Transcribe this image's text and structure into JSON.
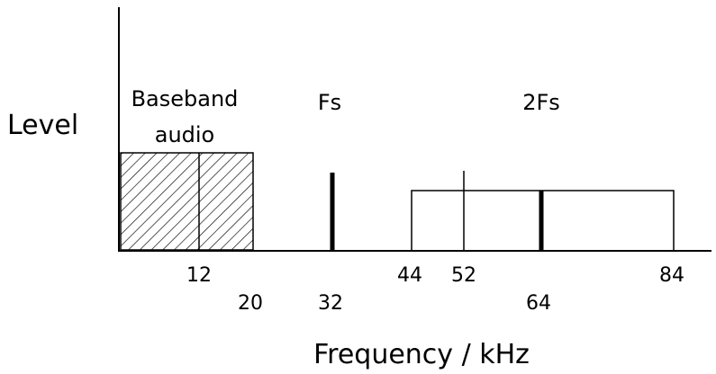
{
  "ylabel": "Level",
  "xlabel": "Frequency / kHz",
  "bands": {
    "baseband_label_line1": "Baseband",
    "baseband_label_line2": "audio",
    "pilot_label": "Fs",
    "subcarrier_label": "2Fs"
  },
  "ticks": {
    "t12": "12",
    "t20": "20",
    "t32": "32",
    "t44": "44",
    "t52": "52",
    "t64": "64",
    "t84": "84"
  },
  "colors": {
    "line": "#000000",
    "background": "#ffffff"
  }
}
